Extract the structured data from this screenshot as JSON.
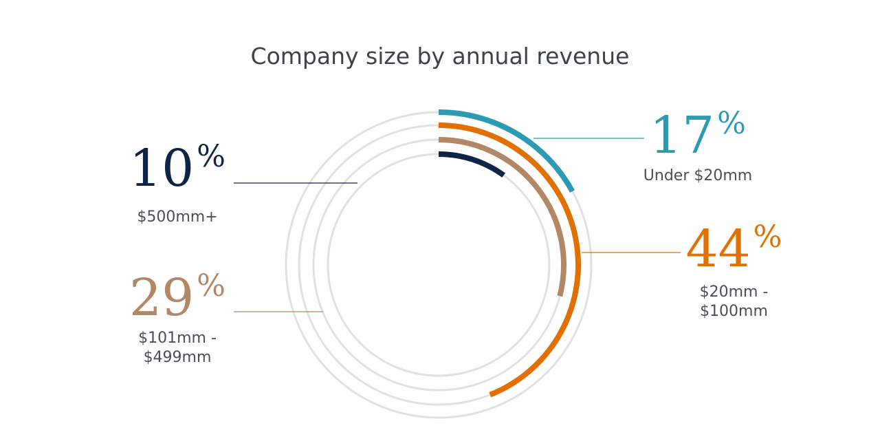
{
  "chart_data": {
    "type": "radial-bar",
    "title": "Company size by annual revenue",
    "value_max": 100,
    "unit_symbol": "%",
    "series": [
      {
        "label": "Under $20mm",
        "value": 17,
        "color": "#2b9ab2"
      },
      {
        "label": "$20mm - $100mm",
        "value": 44,
        "color": "#e17000"
      },
      {
        "label": "$101mm - $499mm",
        "value": 29,
        "color": "#b28766"
      },
      {
        "label": "$500mm+",
        "value": 10,
        "color": "#0d2445"
      }
    ],
    "track_color": "#e1e1e1"
  }
}
